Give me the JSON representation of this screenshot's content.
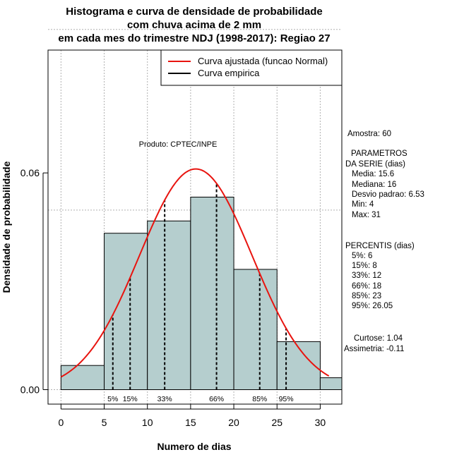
{
  "chart_data": {
    "type": "histogram",
    "title": [
      "Histograma e curva de densidade de probabilidade",
      "com chuva acima de 2 mm",
      "em cada mes do trimestre NDJ (1998-2017): Regiao 27"
    ],
    "xlabel": "Numero de dias",
    "ylabel": "Densidade de probabilidade",
    "xlim": [
      -1.5,
      32.5
    ],
    "ylim": [
      -0.004,
      0.094
    ],
    "x_ticks": [
      0,
      5,
      10,
      15,
      20,
      25,
      30
    ],
    "y_ticks": [
      0.0,
      0.06
    ],
    "y_tick_labels": [
      "0.00",
      "0.06"
    ],
    "bins": [
      {
        "start": 0,
        "end": 5,
        "density": 0.0067
      },
      {
        "start": 5,
        "end": 10,
        "density": 0.0433
      },
      {
        "start": 10,
        "end": 15,
        "density": 0.0467
      },
      {
        "start": 15,
        "end": 20,
        "density": 0.0533
      },
      {
        "start": 20,
        "end": 25,
        "density": 0.0333
      },
      {
        "start": 25,
        "end": 30,
        "density": 0.0133
      },
      {
        "start": 30,
        "end": 35,
        "density": 0.0033
      }
    ],
    "grid_y": [
      0.0,
      0.0497,
      0.0997
    ],
    "normal_fit": {
      "mean": 15.6,
      "sd": 6.53,
      "x_range": [
        0,
        31
      ],
      "color": "#e8140f"
    },
    "percentiles": [
      {
        "label": "5%",
        "value": 6
      },
      {
        "label": "15%",
        "value": 8
      },
      {
        "label": "33%",
        "value": 12
      },
      {
        "label": "66%",
        "value": 18
      },
      {
        "label": "85%",
        "value": 23
      },
      {
        "label": "95%",
        "value": 26.05
      }
    ],
    "colors": {
      "bar_fill": "#b5cece",
      "curve": "#e8140f",
      "grid": "#b0b0b0"
    },
    "legend": {
      "position": "top-right",
      "entries": [
        {
          "label": "Curva ajustada (funcao Normal)",
          "color": "#e8140f"
        },
        {
          "label": "Curva empirica",
          "color": "#000000"
        }
      ]
    },
    "product_label": "Produto: CPTEC/INPE",
    "side_text": {
      "sample": "Amostra: 60",
      "params_title_1": "PARAMETROS",
      "params_title_2": "DA SERIE (dias)",
      "params": [
        "Media: 15.6",
        "Mediana: 16",
        "Desvio padrao: 6.53",
        "Min: 4",
        "Max: 31"
      ],
      "percentis_title": "PERCENTIS (dias)",
      "percentis": [
        "5%: 6",
        "15%: 8",
        "33%: 12",
        "66%: 18",
        "85%: 23",
        "95%: 26.05"
      ],
      "curtose": "Curtose: 1.04",
      "assimetria": "Assimetria: -0.11"
    }
  }
}
